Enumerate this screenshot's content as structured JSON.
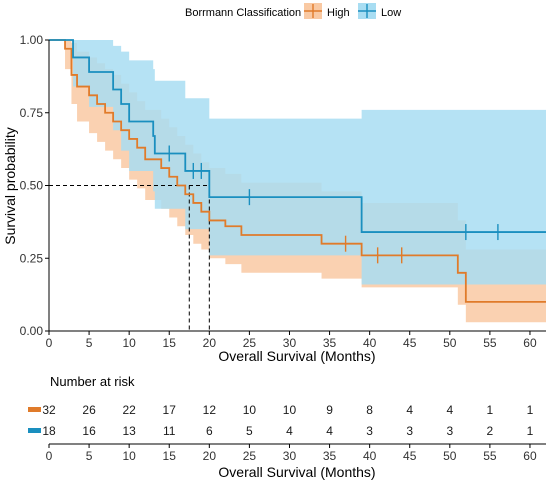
{
  "chart_data": {
    "type": "line",
    "subtype": "kaplan-meier",
    "legend": {
      "title": "Borrmann Classification",
      "placement": "top"
    },
    "xlabel": "Overall Survival (Months)",
    "ylabel": "Survival probability",
    "xlim": [
      0,
      62
    ],
    "ylim": [
      0,
      1
    ],
    "x_ticks": [
      0,
      5,
      10,
      15,
      20,
      25,
      30,
      35,
      40,
      45,
      50,
      55,
      60
    ],
    "x_tick_labels": [
      "0",
      "5",
      "10",
      "15",
      "20",
      "25",
      "30",
      "35",
      "40",
      "45",
      "50",
      "55",
      "60"
    ],
    "y_ticks": [
      0,
      0.25,
      0.5,
      0.75,
      1.0
    ],
    "y_tick_labels": [
      "0.00",
      "0.25",
      "0.50",
      "0.75",
      "1.00"
    ],
    "median_reference": {
      "y": 0.5,
      "x_values": [
        17.5,
        20
      ]
    },
    "series": [
      {
        "name": "High",
        "color": "#E07B2A",
        "band_color": "#F9C9A3",
        "steps": [
          [
            0,
            1.0
          ],
          [
            2,
            0.97
          ],
          [
            2.8,
            0.88
          ],
          [
            3.5,
            0.84
          ],
          [
            5,
            0.81
          ],
          [
            6,
            0.78
          ],
          [
            7,
            0.75
          ],
          [
            8,
            0.72
          ],
          [
            9,
            0.69
          ],
          [
            10,
            0.66
          ],
          [
            11,
            0.63
          ],
          [
            12,
            0.59
          ],
          [
            14,
            0.56
          ],
          [
            15,
            0.53
          ],
          [
            16,
            0.5
          ],
          [
            17,
            0.47
          ],
          [
            18,
            0.44
          ],
          [
            19,
            0.41
          ],
          [
            20,
            0.38
          ],
          [
            22,
            0.36
          ],
          [
            24,
            0.33
          ],
          [
            34,
            0.3
          ],
          [
            39,
            0.26
          ],
          [
            51,
            0.2
          ],
          [
            52,
            0.1
          ],
          [
            62,
            0.1
          ]
        ],
        "lower": [
          [
            0,
            1.0
          ],
          [
            2,
            0.9
          ],
          [
            2.8,
            0.78
          ],
          [
            3.5,
            0.72
          ],
          [
            5,
            0.68
          ],
          [
            6,
            0.65
          ],
          [
            7,
            0.62
          ],
          [
            8,
            0.59
          ],
          [
            9,
            0.56
          ],
          [
            10,
            0.52
          ],
          [
            11,
            0.49
          ],
          [
            12,
            0.45
          ],
          [
            14,
            0.42
          ],
          [
            15,
            0.39
          ],
          [
            16,
            0.36
          ],
          [
            17,
            0.33
          ],
          [
            18,
            0.3
          ],
          [
            19,
            0.28
          ],
          [
            20,
            0.25
          ],
          [
            22,
            0.23
          ],
          [
            24,
            0.2
          ],
          [
            34,
            0.18
          ],
          [
            39,
            0.15
          ],
          [
            51,
            0.09
          ],
          [
            52,
            0.03
          ],
          [
            62,
            0.03
          ]
        ],
        "upper": [
          [
            0,
            1.0
          ],
          [
            2,
            1.0
          ],
          [
            2.8,
            0.99
          ],
          [
            3.5,
            0.96
          ],
          [
            5,
            0.94
          ],
          [
            6,
            0.92
          ],
          [
            7,
            0.9
          ],
          [
            8,
            0.88
          ],
          [
            9,
            0.85
          ],
          [
            10,
            0.82
          ],
          [
            11,
            0.79
          ],
          [
            12,
            0.76
          ],
          [
            14,
            0.73
          ],
          [
            15,
            0.7
          ],
          [
            16,
            0.67
          ],
          [
            17,
            0.64
          ],
          [
            18,
            0.61
          ],
          [
            19,
            0.58
          ],
          [
            20,
            0.56
          ],
          [
            22,
            0.54
          ],
          [
            24,
            0.51
          ],
          [
            34,
            0.48
          ],
          [
            39,
            0.44
          ],
          [
            51,
            0.38
          ],
          [
            52,
            0.28
          ],
          [
            62,
            0.28
          ]
        ],
        "censored": [
          [
            37,
            0.3
          ],
          [
            41,
            0.26
          ],
          [
            44,
            0.26
          ]
        ],
        "at_risk": [
          32,
          26,
          22,
          17,
          12,
          10,
          10,
          9,
          8,
          4,
          4,
          1,
          1
        ]
      },
      {
        "name": "Low",
        "color": "#1A8FBF",
        "band_color": "#A8DDF2",
        "steps": [
          [
            0,
            1.0
          ],
          [
            3,
            0.94
          ],
          [
            5,
            0.89
          ],
          [
            8,
            0.83
          ],
          [
            9,
            0.78
          ],
          [
            10,
            0.72
          ],
          [
            13,
            0.67
          ],
          [
            13.2,
            0.61
          ],
          [
            17,
            0.55
          ],
          [
            20,
            0.46
          ],
          [
            39,
            0.34
          ],
          [
            62,
            0.34
          ]
        ],
        "lower": [
          [
            0,
            1.0
          ],
          [
            3,
            0.84
          ],
          [
            5,
            0.77
          ],
          [
            8,
            0.69
          ],
          [
            9,
            0.62
          ],
          [
            10,
            0.55
          ],
          [
            13,
            0.48
          ],
          [
            13.2,
            0.42
          ],
          [
            17,
            0.35
          ],
          [
            20,
            0.26
          ],
          [
            39,
            0.16
          ],
          [
            62,
            0.16
          ]
        ],
        "upper": [
          [
            0,
            1.0
          ],
          [
            3,
            1.0
          ],
          [
            5,
            1.0
          ],
          [
            8,
            0.98
          ],
          [
            9,
            0.96
          ],
          [
            10,
            0.93
          ],
          [
            13,
            0.9
          ],
          [
            13.2,
            0.86
          ],
          [
            17,
            0.8
          ],
          [
            20,
            0.73
          ],
          [
            39,
            0.76
          ],
          [
            62,
            0.76
          ]
        ],
        "censored": [
          [
            15,
            0.61
          ],
          [
            18,
            0.55
          ],
          [
            19,
            0.55
          ],
          [
            25,
            0.46
          ],
          [
            52,
            0.34
          ],
          [
            56,
            0.34
          ]
        ],
        "at_risk": [
          18,
          16,
          13,
          11,
          6,
          5,
          4,
          4,
          3,
          3,
          3,
          2,
          1
        ]
      }
    ],
    "risk_table": {
      "title": "Number at risk",
      "xlabel": "Overall Survival (Months)",
      "times": [
        0,
        5,
        10,
        15,
        20,
        25,
        30,
        35,
        40,
        45,
        50,
        55,
        60
      ]
    }
  }
}
